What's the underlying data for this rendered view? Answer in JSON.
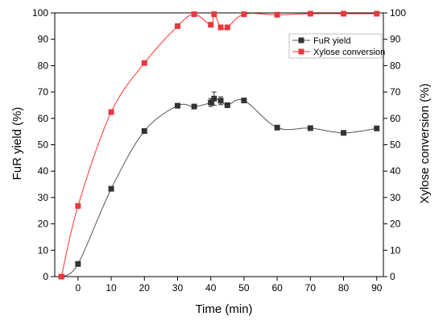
{
  "chart_data": {
    "type": "line",
    "xlabel": "Time (min)",
    "ylabel_left": "FuR yield (%)",
    "ylabel_right": "Xylose conversion (%)",
    "xlim": [
      -7,
      92
    ],
    "ylim_left": [
      0,
      100
    ],
    "ylim_right": [
      0,
      100
    ],
    "x_ticks": [
      0,
      10,
      20,
      30,
      40,
      50,
      60,
      70,
      80,
      90
    ],
    "y_ticks_left": [
      0,
      10,
      20,
      30,
      40,
      50,
      60,
      70,
      80,
      90,
      100
    ],
    "y_ticks_right": [
      0,
      10,
      20,
      30,
      40,
      50,
      60,
      70,
      80,
      90,
      100
    ],
    "grid": false,
    "legend_position": "top-right",
    "series": [
      {
        "name": "FuR yield",
        "axis": "left",
        "color": "#555555",
        "marker": "square",
        "marker_color": "#333333",
        "x": [
          -5,
          0,
          10,
          20,
          30,
          35,
          40,
          41,
          43,
          45,
          50,
          60,
          70,
          80,
          90
        ],
        "y": [
          0,
          4.8,
          33.3,
          55.2,
          64.8,
          64.5,
          66.0,
          67.5,
          66.7,
          65.0,
          66.8,
          56.5,
          56.3,
          54.5,
          56.2
        ],
        "error": [
          0,
          0,
          0,
          0,
          0,
          0,
          1.5,
          2.5,
          1.5,
          0,
          0.7,
          0,
          0,
          0,
          0
        ]
      },
      {
        "name": "Xylose conversion",
        "axis": "right",
        "color": "#ff3333",
        "marker": "square",
        "marker_color": "#e8383d",
        "x": [
          -5,
          0,
          10,
          20,
          30,
          35,
          40,
          41,
          43,
          45,
          50,
          60,
          70,
          80,
          90
        ],
        "y": [
          0,
          26.8,
          62.4,
          81.0,
          95.0,
          99.5,
          95.5,
          99.5,
          94.5,
          94.5,
          99.5,
          99.3,
          99.7,
          99.7,
          99.7
        ]
      }
    ]
  }
}
